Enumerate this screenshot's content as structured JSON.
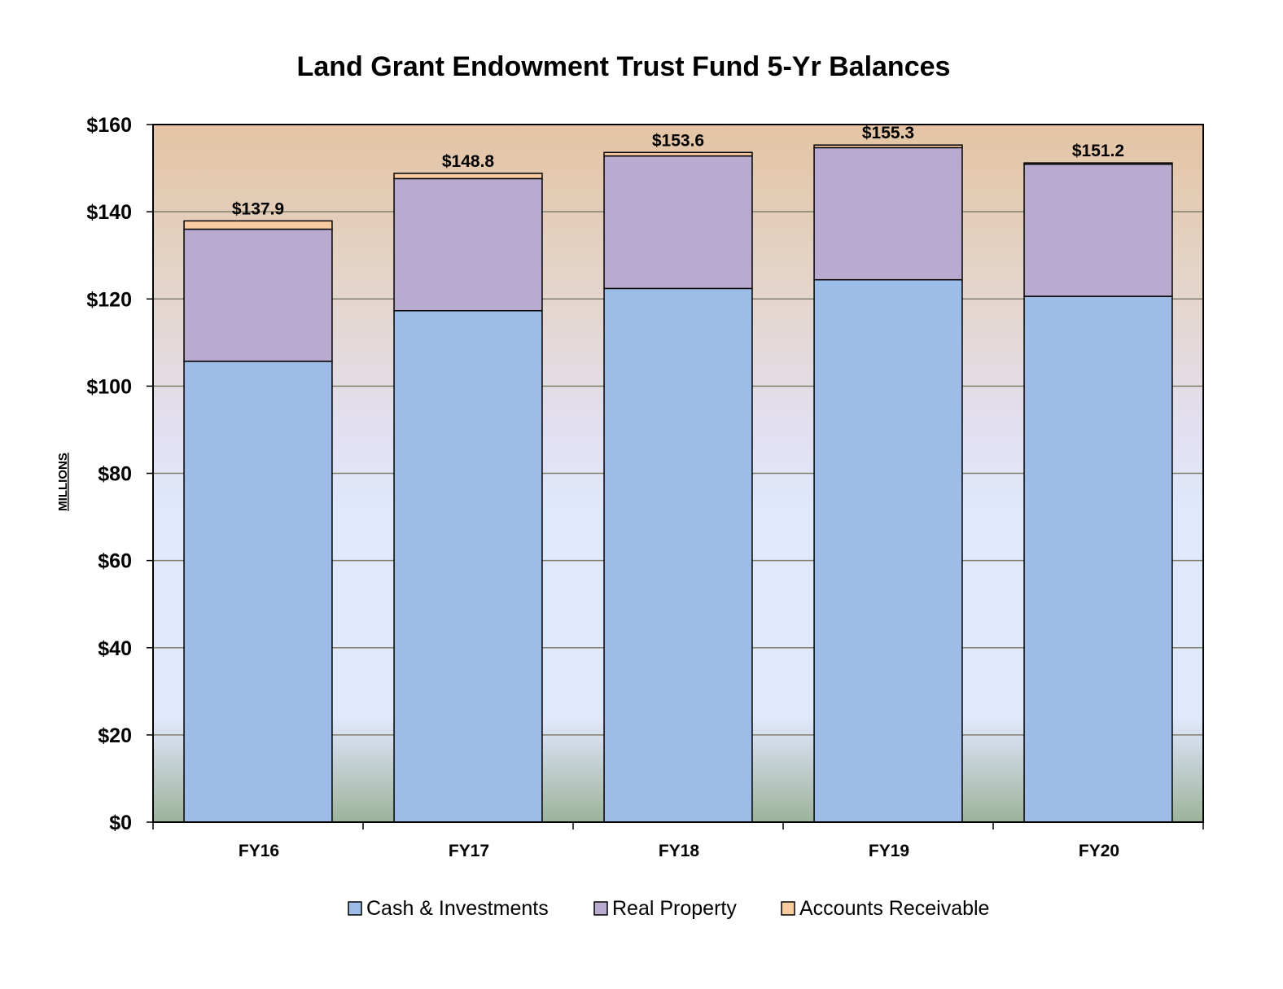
{
  "chart_data": {
    "type": "bar",
    "stacked": true,
    "title": "Land Grant Endowment Trust Fund 5-Yr Balances",
    "ylabel": "MILLIONS",
    "xlabel": "",
    "categories": [
      "FY16",
      "FY17",
      "FY18",
      "FY19",
      "FY20"
    ],
    "ylim": [
      0,
      160
    ],
    "yticks": [
      0,
      20,
      40,
      60,
      80,
      100,
      120,
      140,
      160
    ],
    "ytick_labels": [
      "$0",
      "$20",
      "$40",
      "$60",
      "$80",
      "$100",
      "$120",
      "$140",
      "$160"
    ],
    "series": [
      {
        "name": "Cash & Investments",
        "color": "#9dbde8",
        "values": [
          105.7,
          117.3,
          122.4,
          124.4,
          120.6
        ]
      },
      {
        "name": "Real Property",
        "color": "#b9abcf",
        "values": [
          30.3,
          30.3,
          30.4,
          30.3,
          30.3
        ]
      },
      {
        "name": "Accounts Receivable",
        "color": "#f8cca0",
        "values": [
          1.9,
          1.2,
          0.8,
          0.6,
          0.3
        ]
      }
    ],
    "totals": [
      137.9,
      148.8,
      153.6,
      155.3,
      151.2
    ],
    "total_labels": [
      "$137.9",
      "$148.8",
      "$153.6",
      "$155.3",
      "$151.2"
    ],
    "grid": true,
    "legend": "bottom",
    "background_gradient": [
      "#e4c5a6",
      "#e0e4f8",
      "#9fb39c"
    ]
  }
}
